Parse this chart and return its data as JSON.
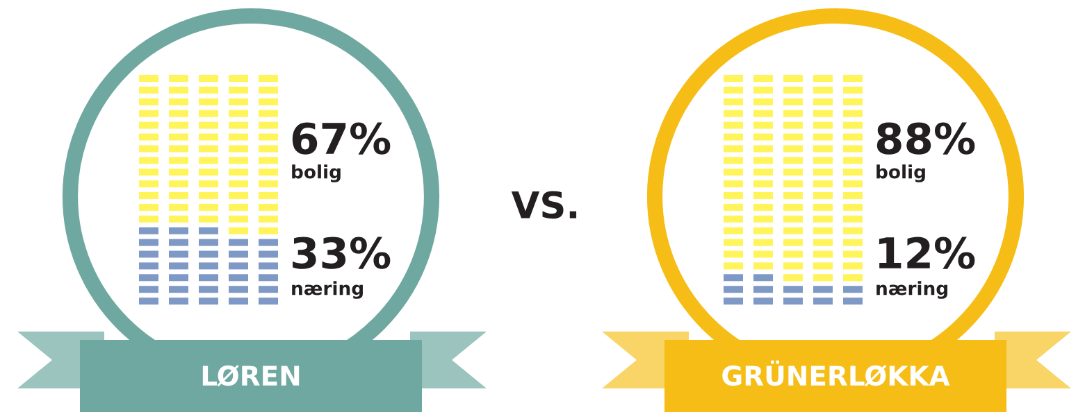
{
  "chart_data": [
    {
      "type": "other",
      "title": "LØREN",
      "categories": [
        "bolig",
        "næring"
      ],
      "values": [
        67,
        33
      ],
      "value_labels": [
        "67%",
        "33%"
      ],
      "colors": [
        "#fff45a",
        "#7f99c6"
      ],
      "annotations": [
        "VS."
      ]
    },
    {
      "type": "other",
      "title": "GRÜNERLØKKA",
      "categories": [
        "bolig",
        "næring"
      ],
      "values": [
        88,
        12
      ],
      "value_labels": [
        "88%",
        "12%"
      ],
      "colors": [
        "#fff45a",
        "#7f99c6"
      ]
    }
  ]
}
